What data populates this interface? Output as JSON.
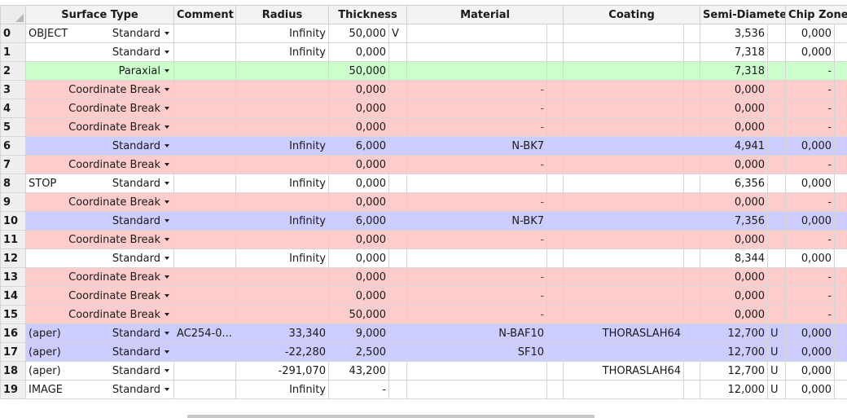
{
  "columns": {
    "surface_type": "Surface Type",
    "comment": "Comment",
    "radius": "Radius",
    "thickness": "Thickness",
    "material": "Material",
    "coating": "Coating",
    "semi_diameter": "Semi-Diameter",
    "chip_zone": "Chip Zone"
  },
  "row_colors": {
    "white": "#ffffff",
    "green": "#ccffcc",
    "pink": "#ffcccc",
    "blue": "#ccccff"
  },
  "rows": [
    {
      "num": "0",
      "color": "white",
      "label": "OBJECT",
      "type": "Standard",
      "comment": "",
      "radius": "Infinity",
      "thickness": "50,000",
      "thk_solve": "V",
      "material": "",
      "coating": "",
      "semi_diameter": "3,536",
      "sd_solve": "",
      "chip_zone": "0,000"
    },
    {
      "num": "1",
      "color": "white",
      "label": "",
      "type": "Standard",
      "comment": "",
      "radius": "Infinity",
      "thickness": "0,000",
      "thk_solve": "",
      "material": "",
      "coating": "",
      "semi_diameter": "7,318",
      "sd_solve": "",
      "chip_zone": "0,000"
    },
    {
      "num": "2",
      "color": "green",
      "label": "",
      "type": "Paraxial",
      "comment": "",
      "radius": "",
      "thickness": "50,000",
      "thk_solve": "",
      "material": "",
      "coating": "",
      "semi_diameter": "7,318",
      "sd_solve": "",
      "chip_zone": "-"
    },
    {
      "num": "3",
      "color": "pink",
      "label": "",
      "type": "Coordinate Break",
      "comment": "",
      "radius": "",
      "thickness": "0,000",
      "thk_solve": "",
      "material": "-",
      "coating": "",
      "semi_diameter": "0,000",
      "sd_solve": "",
      "chip_zone": "-"
    },
    {
      "num": "4",
      "color": "pink",
      "label": "",
      "type": "Coordinate Break",
      "comment": "",
      "radius": "",
      "thickness": "0,000",
      "thk_solve": "",
      "material": "-",
      "coating": "",
      "semi_diameter": "0,000",
      "sd_solve": "",
      "chip_zone": "-"
    },
    {
      "num": "5",
      "color": "pink",
      "label": "",
      "type": "Coordinate Break",
      "comment": "",
      "radius": "",
      "thickness": "0,000",
      "thk_solve": "",
      "material": "-",
      "coating": "",
      "semi_diameter": "0,000",
      "sd_solve": "",
      "chip_zone": "-"
    },
    {
      "num": "6",
      "color": "blue",
      "label": "",
      "type": "Standard",
      "comment": "",
      "radius": "Infinity",
      "thickness": "6,000",
      "thk_solve": "",
      "material": "N-BK7",
      "coating": "",
      "semi_diameter": "4,941",
      "sd_solve": "",
      "chip_zone": "0,000"
    },
    {
      "num": "7",
      "color": "pink",
      "label": "",
      "type": "Coordinate Break",
      "comment": "",
      "radius": "",
      "thickness": "0,000",
      "thk_solve": "",
      "material": "-",
      "coating": "",
      "semi_diameter": "0,000",
      "sd_solve": "",
      "chip_zone": "-"
    },
    {
      "num": "8",
      "color": "white",
      "label": "STOP",
      "type": "Standard",
      "comment": "",
      "radius": "Infinity",
      "thickness": "0,000",
      "thk_solve": "",
      "material": "",
      "coating": "",
      "semi_diameter": "6,356",
      "sd_solve": "",
      "chip_zone": "0,000"
    },
    {
      "num": "9",
      "color": "pink",
      "label": "",
      "type": "Coordinate Break",
      "comment": "",
      "radius": "",
      "thickness": "0,000",
      "thk_solve": "",
      "material": "-",
      "coating": "",
      "semi_diameter": "0,000",
      "sd_solve": "",
      "chip_zone": "-"
    },
    {
      "num": "10",
      "color": "blue",
      "label": "",
      "type": "Standard",
      "comment": "",
      "radius": "Infinity",
      "thickness": "6,000",
      "thk_solve": "",
      "material": "N-BK7",
      "coating": "",
      "semi_diameter": "7,356",
      "sd_solve": "",
      "chip_zone": "0,000"
    },
    {
      "num": "11",
      "color": "pink",
      "label": "",
      "type": "Coordinate Break",
      "comment": "",
      "radius": "",
      "thickness": "0,000",
      "thk_solve": "",
      "material": "-",
      "coating": "",
      "semi_diameter": "0,000",
      "sd_solve": "",
      "chip_zone": "-"
    },
    {
      "num": "12",
      "color": "white",
      "label": "",
      "type": "Standard",
      "comment": "",
      "radius": "Infinity",
      "thickness": "0,000",
      "thk_solve": "",
      "material": "",
      "coating": "",
      "semi_diameter": "8,344",
      "sd_solve": "",
      "chip_zone": "0,000"
    },
    {
      "num": "13",
      "color": "pink",
      "label": "",
      "type": "Coordinate Break",
      "comment": "",
      "radius": "",
      "thickness": "0,000",
      "thk_solve": "",
      "material": "-",
      "coating": "",
      "semi_diameter": "0,000",
      "sd_solve": "",
      "chip_zone": "-"
    },
    {
      "num": "14",
      "color": "pink",
      "label": "",
      "type": "Coordinate Break",
      "comment": "",
      "radius": "",
      "thickness": "0,000",
      "thk_solve": "",
      "material": "-",
      "coating": "",
      "semi_diameter": "0,000",
      "sd_solve": "",
      "chip_zone": "-"
    },
    {
      "num": "15",
      "color": "pink",
      "label": "",
      "type": "Coordinate Break",
      "comment": "",
      "radius": "",
      "thickness": "50,000",
      "thk_solve": "",
      "material": "-",
      "coating": "",
      "semi_diameter": "0,000",
      "sd_solve": "",
      "chip_zone": "-"
    },
    {
      "num": "16",
      "color": "blue",
      "label": "(aper)",
      "type": "Standard",
      "comment": "AC254-0...",
      "radius": "33,340",
      "thickness": "9,000",
      "thk_solve": "",
      "material": "N-BAF10",
      "coating": "THORASLAH64",
      "semi_diameter": "12,700",
      "sd_solve": "U",
      "chip_zone": "0,000"
    },
    {
      "num": "17",
      "color": "blue",
      "label": "(aper)",
      "type": "Standard",
      "comment": "",
      "radius": "-22,280",
      "thickness": "2,500",
      "thk_solve": "",
      "material": "SF10",
      "coating": "",
      "semi_diameter": "12,700",
      "sd_solve": "U",
      "chip_zone": "0,000"
    },
    {
      "num": "18",
      "color": "white",
      "label": "(aper)",
      "type": "Standard",
      "comment": "",
      "radius": "-291,070",
      "thickness": "43,200",
      "thk_solve": "",
      "material": "",
      "coating": "THORASLAH64",
      "semi_diameter": "12,700",
      "sd_solve": "U",
      "chip_zone": "0,000"
    },
    {
      "num": "19",
      "color": "white",
      "label": "IMAGE",
      "type": "Standard",
      "comment": "",
      "radius": "Infinity",
      "thickness": "-",
      "thk_solve": "",
      "material": "",
      "coating": "",
      "semi_diameter": "12,000",
      "sd_solve": "U",
      "chip_zone": "0,000"
    }
  ]
}
